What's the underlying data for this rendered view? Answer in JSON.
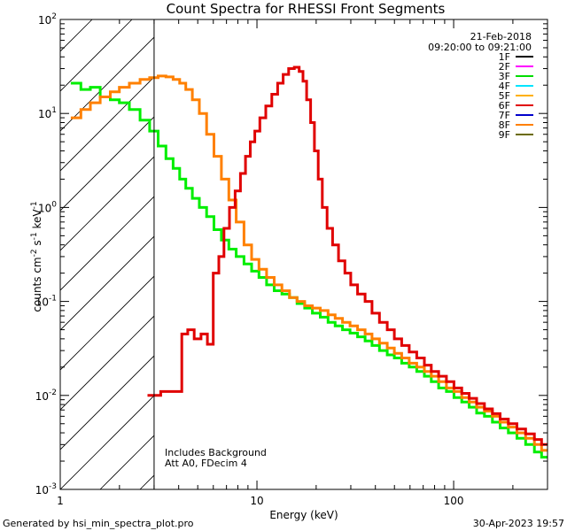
{
  "chart_data": {
    "type": "line",
    "title": "Count Spectra for RHESSI Front Segments",
    "xlabel": "Energy (keV)",
    "ylabel_parts": {
      "pre": "counts cm",
      "exp1": "-2",
      "mid1": " s",
      "exp2": "-1",
      "mid2": " keV",
      "exp3": "-1"
    },
    "xscale": "log",
    "yscale": "log",
    "xlim": [
      1,
      300
    ],
    "ylim": [
      0.001,
      100
    ],
    "x_ticks": [
      {
        "value": 1,
        "label": "1"
      },
      {
        "value": 10,
        "label": "10"
      },
      {
        "value": 100,
        "label": "100"
      }
    ],
    "y_ticks": [
      {
        "value": 0.001,
        "base": "10",
        "exp": "-3"
      },
      {
        "value": 0.01,
        "base": "10",
        "exp": "-2"
      },
      {
        "value": 0.1,
        "base": "10",
        "exp": "-1"
      },
      {
        "value": 1,
        "base": "10",
        "exp": "0"
      },
      {
        "value": 10,
        "base": "10",
        "exp": "1"
      },
      {
        "value": 100,
        "base": "10",
        "exp": "2"
      }
    ],
    "hatched_below_keV": 3,
    "date": "21-Feb-2018",
    "time_range": "09:20:00 to 09:21:00",
    "annotations": [
      "Includes Background",
      "Att A0, FDecim 4"
    ],
    "legend": [
      {
        "name": "1F",
        "color": "#000000"
      },
      {
        "name": "2F",
        "color": "#ff00ff"
      },
      {
        "name": "3F",
        "color": "#00dd00"
      },
      {
        "name": "4F",
        "color": "#00e5ff"
      },
      {
        "name": "5F",
        "color": "#ffb000"
      },
      {
        "name": "6F",
        "color": "#e00000"
      },
      {
        "name": "7F",
        "color": "#0000cc"
      },
      {
        "name": "8F",
        "color": "#ff8000"
      },
      {
        "name": "9F",
        "color": "#6b6b00"
      }
    ],
    "series": [
      {
        "name": "3F",
        "color": "#00ee00",
        "x": [
          1.2,
          1.35,
          1.5,
          1.7,
          1.9,
          2.1,
          2.4,
          2.7,
          3.0,
          3.3,
          3.6,
          3.9,
          4.2,
          4.5,
          4.9,
          5.3,
          5.8,
          6.3,
          6.9,
          7.5,
          8.2,
          9.0,
          9.8,
          10.7,
          11.7,
          12.8,
          14.0,
          15.3,
          16.7,
          18.3,
          20.0,
          22.0,
          24.0,
          26.0,
          28.5,
          31.0,
          34.0,
          37.0,
          40.0,
          44.0,
          48.0,
          52.0,
          57.0,
          62.0,
          68.0,
          74.0,
          80.0,
          88.0,
          96.0,
          105.0,
          115.0,
          125.0,
          137.0,
          150.0,
          165.0,
          180.0,
          200.0,
          220.0,
          245.0,
          270.0,
          290.0
        ],
        "values": [
          21,
          18,
          19,
          15,
          14,
          13,
          11,
          8.5,
          6.5,
          4.5,
          3.3,
          2.6,
          2.0,
          1.6,
          1.25,
          1.0,
          0.8,
          0.58,
          0.45,
          0.36,
          0.3,
          0.25,
          0.21,
          0.18,
          0.15,
          0.13,
          0.12,
          0.11,
          0.095,
          0.085,
          0.075,
          0.068,
          0.06,
          0.055,
          0.05,
          0.046,
          0.042,
          0.038,
          0.034,
          0.03,
          0.027,
          0.025,
          0.022,
          0.02,
          0.018,
          0.016,
          0.014,
          0.012,
          0.011,
          0.0095,
          0.0085,
          0.0075,
          0.0065,
          0.006,
          0.0052,
          0.0045,
          0.004,
          0.0035,
          0.003,
          0.0025,
          0.0022
        ]
      },
      {
        "name": "8F",
        "color": "#ff8000",
        "x": [
          1.2,
          1.35,
          1.5,
          1.7,
          1.9,
          2.1,
          2.4,
          2.7,
          3.0,
          3.3,
          3.6,
          3.9,
          4.2,
          4.5,
          4.9,
          5.3,
          5.8,
          6.3,
          6.9,
          7.5,
          8.2,
          9.0,
          9.8,
          10.7,
          11.7,
          12.8,
          14.0,
          15.3,
          16.7,
          18.3,
          20.0,
          22.0,
          24.0,
          26.0,
          28.5,
          31.0,
          34.0,
          37.0,
          40.0,
          44.0,
          48.0,
          52.0,
          57.0,
          62.0,
          68.0,
          74.0,
          80.0,
          88.0,
          96.0,
          105.0,
          115.0,
          125.0,
          137.0,
          150.0,
          165.0,
          180.0,
          200.0,
          220.0,
          245.0,
          270.0,
          290.0
        ],
        "values": [
          9,
          11,
          13,
          15,
          17,
          19,
          21,
          23,
          24,
          25,
          24.5,
          23,
          21,
          18,
          14,
          10,
          6,
          3.5,
          2.0,
          1.2,
          0.7,
          0.4,
          0.28,
          0.22,
          0.18,
          0.15,
          0.13,
          0.11,
          0.1,
          0.09,
          0.085,
          0.08,
          0.072,
          0.066,
          0.06,
          0.055,
          0.05,
          0.045,
          0.04,
          0.036,
          0.032,
          0.028,
          0.025,
          0.022,
          0.02,
          0.018,
          0.016,
          0.014,
          0.012,
          0.011,
          0.0095,
          0.0085,
          0.0075,
          0.0068,
          0.006,
          0.0052,
          0.0046,
          0.004,
          0.0035,
          0.003,
          0.0026
        ]
      },
      {
        "name": "6F",
        "color": "#e00000",
        "x": [
          3.0,
          3.5,
          4.0,
          4.3,
          4.6,
          5.0,
          5.4,
          5.8,
          6.2,
          6.6,
          7.0,
          7.5,
          8.0,
          8.5,
          9.0,
          9.5,
          10.0,
          10.7,
          11.5,
          12.3,
          13.2,
          14.0,
          15.0,
          16.0,
          16.8,
          17.5,
          18.3,
          19.2,
          20.0,
          21.0,
          22.0,
          23.5,
          25.0,
          27.0,
          29.0,
          31.0,
          34.0,
          37.0,
          40.0,
          44.0,
          48.0,
          52.0,
          57.0,
          62.0,
          68.0,
          74.0,
          80.0,
          88.0,
          96.0,
          105.0,
          115.0,
          125.0,
          137.0,
          150.0,
          165.0,
          180.0,
          200.0,
          220.0,
          245.0,
          270.0,
          290.0
        ],
        "values": [
          0.01,
          0.011,
          0.011,
          0.045,
          0.05,
          0.04,
          0.045,
          0.035,
          0.2,
          0.3,
          0.6,
          1.0,
          1.5,
          2.3,
          3.5,
          5.0,
          6.5,
          9.0,
          12.0,
          16.0,
          21.0,
          26.0,
          30.0,
          31.0,
          28.0,
          22.0,
          14.0,
          8.0,
          4.0,
          2.0,
          1.0,
          0.6,
          0.4,
          0.27,
          0.2,
          0.15,
          0.12,
          0.1,
          0.075,
          0.06,
          0.05,
          0.04,
          0.034,
          0.029,
          0.025,
          0.021,
          0.018,
          0.016,
          0.014,
          0.012,
          0.0105,
          0.0093,
          0.0082,
          0.0072,
          0.0064,
          0.0056,
          0.005,
          0.0044,
          0.0039,
          0.0034,
          0.003
        ]
      }
    ]
  },
  "footer": {
    "generated_by": "Generated by hsi_min_spectra_plot.pro",
    "timestamp": "30-Apr-2023 19:57"
  }
}
